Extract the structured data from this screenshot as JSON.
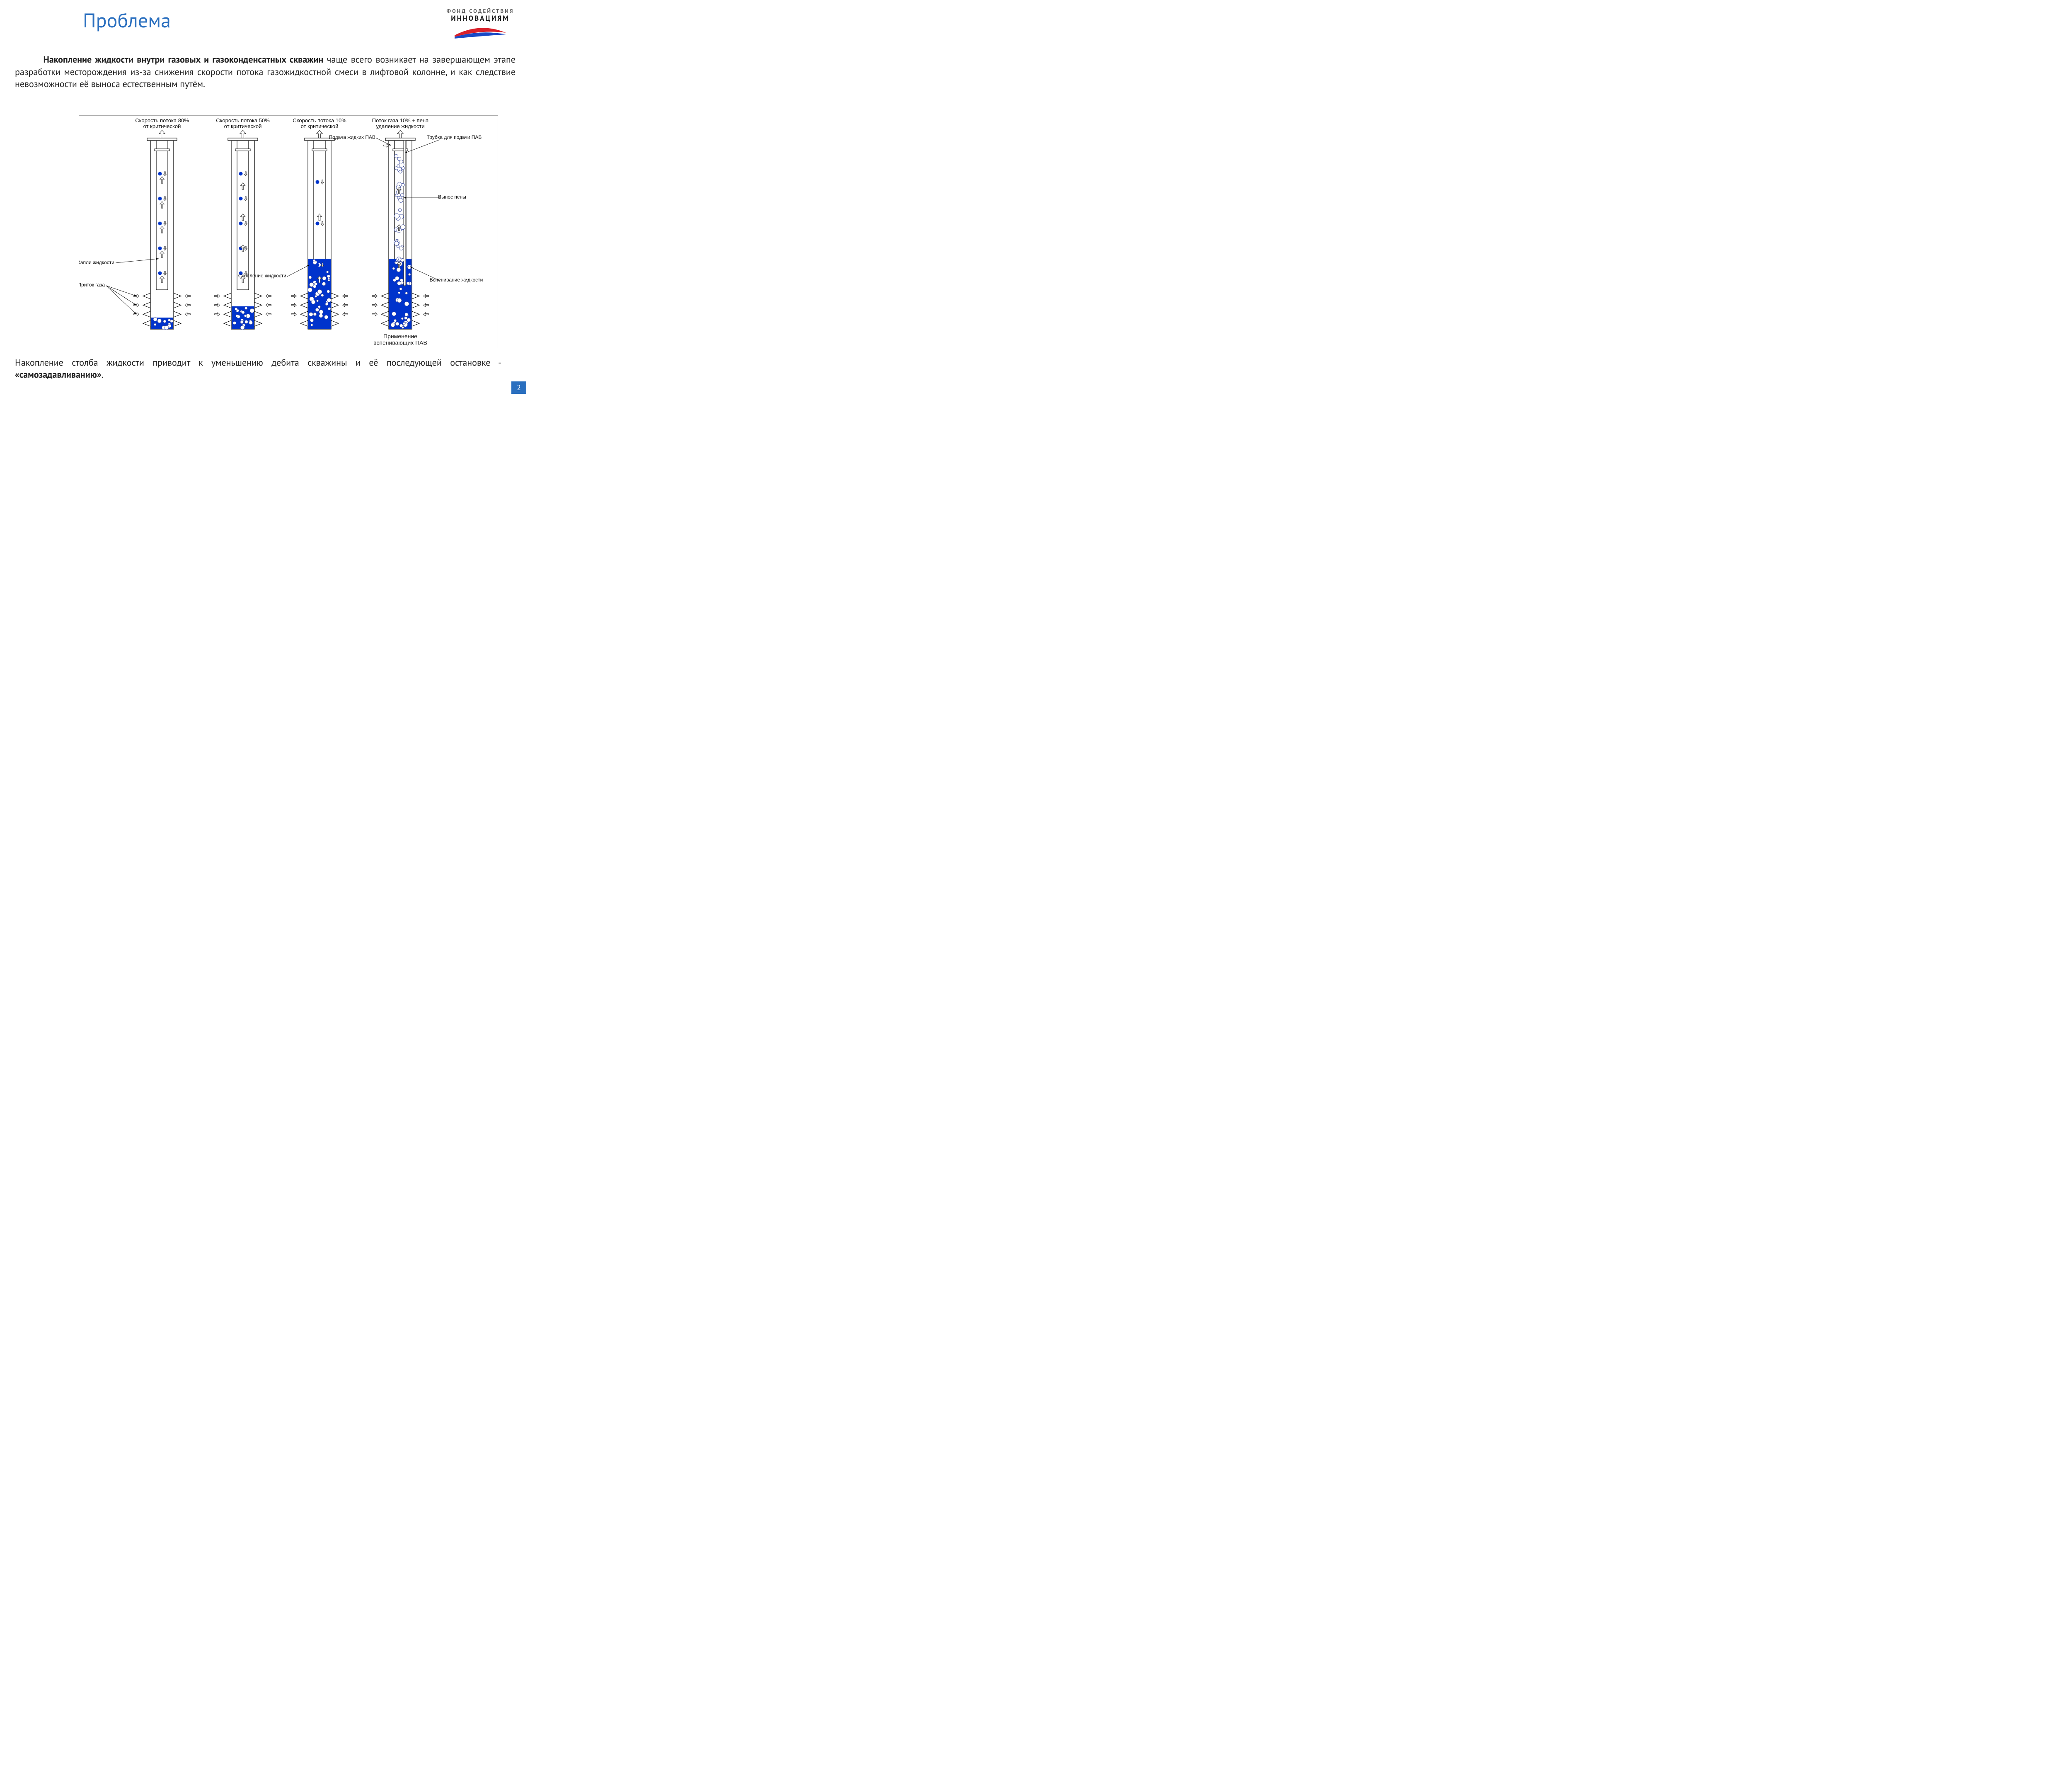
{
  "page_title": "Проблема",
  "page_number": "2",
  "logo": {
    "line1": "ФОНД СОДЕЙСТВИЯ",
    "line2": "ИННОВАЦИЯМ"
  },
  "paragraph_top": {
    "bold_lead": "Накопление жидкости внутри газовых и газоконденсатных скважин",
    "rest": " чаще всего возникает на завершающем этапе разработки месторождения из-за снижения скорости потока газожидкостной смеси в лифтовой колонне, и как следствие невозможности её выноса естественным путём."
  },
  "paragraph_bottom": {
    "plain": "Накопление столба жидкости приводит к уменьшению дебита скважины и её последующей остановке - ",
    "bold": "«самозадавливанию»",
    "period": "."
  },
  "diagram": {
    "background": "#ffffff",
    "well_outline": "#000000",
    "liquid_color": "#0033cc",
    "droplet_color": "#0033cc",
    "bubble_fill": "#ffffff",
    "bubble_stroke": "#334499",
    "arrow_color": "#333333",
    "label_font_size": 12,
    "title_font_size": 13,
    "label_color": "#111111",
    "columns": [
      {
        "title1": "Скорость потока 80%",
        "title2": "от критической",
        "liquid_h": 28,
        "droplets": 5,
        "up_arrows": 5,
        "foam": false
      },
      {
        "title1": "Скорость потока 50%",
        "title2": "от критической",
        "liquid_h": 55,
        "droplets": 5,
        "up_arrows": 4,
        "foam": false
      },
      {
        "title1": "Скорость потока 10%",
        "title2": "от критической",
        "liquid_h": 170,
        "droplets": 3,
        "up_arrows": 2,
        "foam": false
      },
      {
        "title1": "Поток газа 10% + пена",
        "title2": "удаление жидкости",
        "liquid_h": 170,
        "droplets": 0,
        "up_arrows": 3,
        "foam": true,
        "subtitle": "Применение\nвспенивающих ПАВ"
      }
    ],
    "labels_left": {
      "droplets": "Капли жидкости",
      "gas_inflow": "Приток газа"
    },
    "labels_mid": {
      "accumulation": "Скопление жидкости"
    },
    "labels_right": {
      "pav_feed": "Подача жидких ПАВ",
      "pav_tube": "Трубка для подачи ПАВ",
      "foam_out": "Вынос пены",
      "foaming": "Вспенивание жидкости"
    }
  }
}
